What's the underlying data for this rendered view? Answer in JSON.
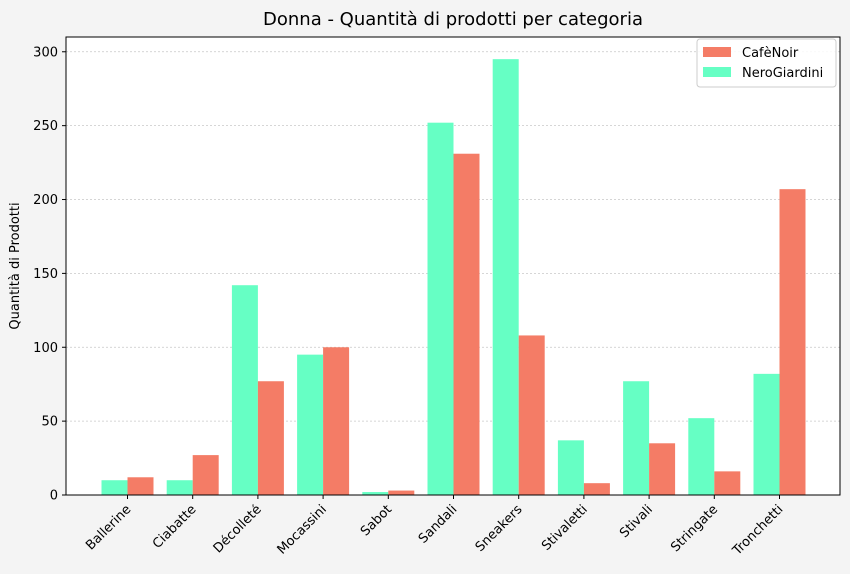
{
  "chart_data": {
    "type": "bar",
    "title": "Donna - Quantità di prodotti per categoria",
    "xlabel": "",
    "ylabel": "Quantità di Prodotti",
    "ylim": [
      0,
      310
    ],
    "yticks": [
      0,
      50,
      100,
      150,
      200,
      250,
      300
    ],
    "grid": "y-dotted",
    "legend_position": "top-right",
    "categories": [
      "Ballerine",
      "Ciabatte",
      "Décolleté",
      "Mocassini",
      "Sabot",
      "Sandali",
      "Sneakers",
      "Stivaletti",
      "Stivali",
      "Stringate",
      "Tronchetti"
    ],
    "series": [
      {
        "name": "CafèNoir",
        "color": "#f47c66",
        "values": [
          12,
          27,
          77,
          100,
          3,
          231,
          108,
          8,
          35,
          16,
          207
        ]
      },
      {
        "name": "NeroGiardini",
        "color": "#66ffc4",
        "values": [
          10,
          10,
          142,
          95,
          2,
          252,
          295,
          37,
          77,
          52,
          82
        ]
      }
    ]
  }
}
